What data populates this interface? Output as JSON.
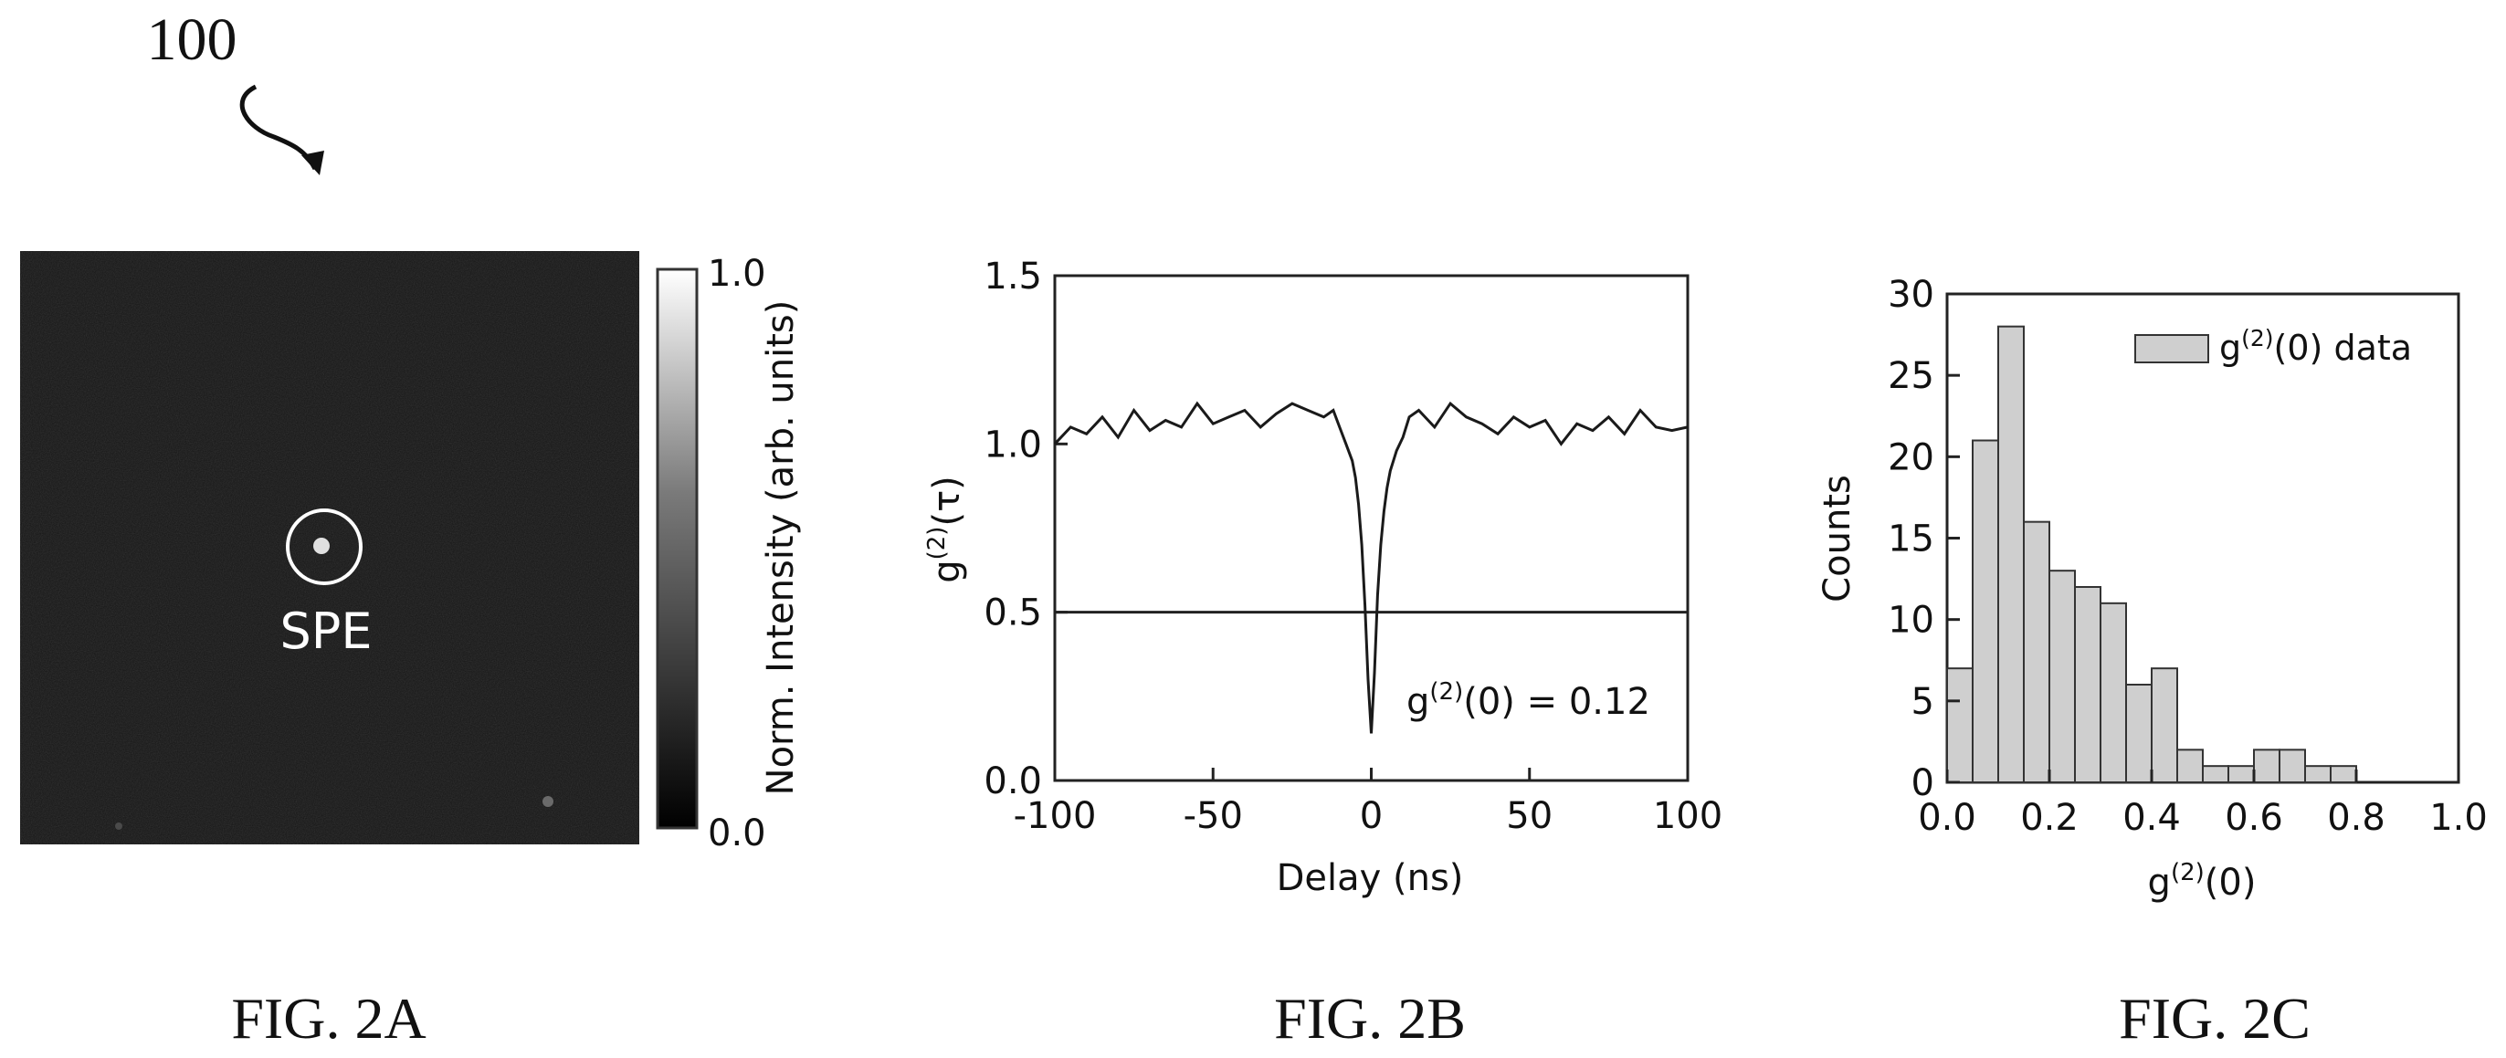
{
  "figure_ref": "100",
  "captions": {
    "a": "FIG. 2A",
    "b": "FIG. 2B",
    "c": "FIG. 2C"
  },
  "colors": {
    "ink": "#111111",
    "bar_fill": "#cfcfcf",
    "image_bg": "#151515",
    "marker": "#ffffff"
  },
  "chart_data": [
    {
      "type": "heatmap",
      "annotation": "SPE",
      "colorbar": {
        "label": "Norm. Intensity (arb. units)",
        "min": 0.0,
        "max": 1.0,
        "tick_labels": [
          "0.0",
          "1.0"
        ],
        "colormap": "grayscale"
      }
    },
    {
      "type": "line",
      "xlabel": "Delay (ns)",
      "ylabel": "g(2)(τ)",
      "xlim": [
        -100,
        100
      ],
      "ylim": [
        0.0,
        1.5
      ],
      "x_ticks": [
        -100,
        -50,
        0,
        50,
        100
      ],
      "x_tick_labels": [
        "-100",
        "-50",
        "0",
        "50",
        "100"
      ],
      "y_ticks": [
        0.0,
        0.5,
        1.0,
        1.5
      ],
      "y_tick_labels": [
        "0.0",
        "0.5",
        "1.0",
        "1.5"
      ],
      "reference_line": {
        "y": 0.5
      },
      "annotation": "g(2)(0) = 0.12",
      "series": [
        {
          "x": [
            -100,
            -95,
            -90,
            -85,
            -80,
            -75,
            -70,
            -65,
            -60,
            -55,
            -50,
            -45,
            -40,
            -35,
            -30,
            -25,
            -20,
            -15,
            -12,
            -10,
            -8,
            -6,
            -5,
            -4,
            -3,
            -2,
            -1,
            0,
            1,
            2,
            3,
            4,
            5,
            6,
            8,
            10,
            12,
            15,
            20,
            25,
            30,
            35,
            40,
            45,
            50,
            55,
            60,
            65,
            70,
            75,
            80,
            85,
            90,
            95,
            100
          ],
          "y": [
            1.0,
            1.05,
            1.03,
            1.08,
            1.02,
            1.1,
            1.04,
            1.07,
            1.05,
            1.12,
            1.06,
            1.08,
            1.1,
            1.05,
            1.09,
            1.12,
            1.1,
            1.08,
            1.1,
            1.05,
            1.0,
            0.95,
            0.9,
            0.82,
            0.7,
            0.52,
            0.3,
            0.14,
            0.32,
            0.55,
            0.7,
            0.8,
            0.87,
            0.92,
            0.98,
            1.02,
            1.08,
            1.1,
            1.05,
            1.12,
            1.08,
            1.06,
            1.03,
            1.08,
            1.05,
            1.07,
            1.0,
            1.06,
            1.04,
            1.08,
            1.03,
            1.1,
            1.05,
            1.04,
            1.05
          ]
        }
      ]
    },
    {
      "type": "bar",
      "xlabel": "g(2)(0)",
      "ylabel": "Counts",
      "xlim": [
        0.0,
        1.0
      ],
      "ylim": [
        0,
        30
      ],
      "x_ticks": [
        0.0,
        0.2,
        0.4,
        0.6,
        0.8,
        1.0
      ],
      "x_tick_labels": [
        "0.0",
        "0.2",
        "0.4",
        "0.6",
        "0.8",
        "1.0"
      ],
      "y_ticks": [
        0,
        5,
        10,
        15,
        20,
        25,
        30
      ],
      "y_tick_labels": [
        "0",
        "5",
        "10",
        "15",
        "20",
        "25",
        "30"
      ],
      "bin_width": 0.05,
      "legend": {
        "label": "g(2)(0) data",
        "position": "top-right"
      },
      "bins": [
        0.0,
        0.05,
        0.1,
        0.15,
        0.2,
        0.25,
        0.3,
        0.35,
        0.4,
        0.45,
        0.5,
        0.55,
        0.6,
        0.65,
        0.7,
        0.75
      ],
      "values": [
        7,
        21,
        28,
        16,
        13,
        12,
        11,
        6,
        7,
        2,
        1,
        1,
        2,
        2,
        1,
        1
      ]
    }
  ]
}
